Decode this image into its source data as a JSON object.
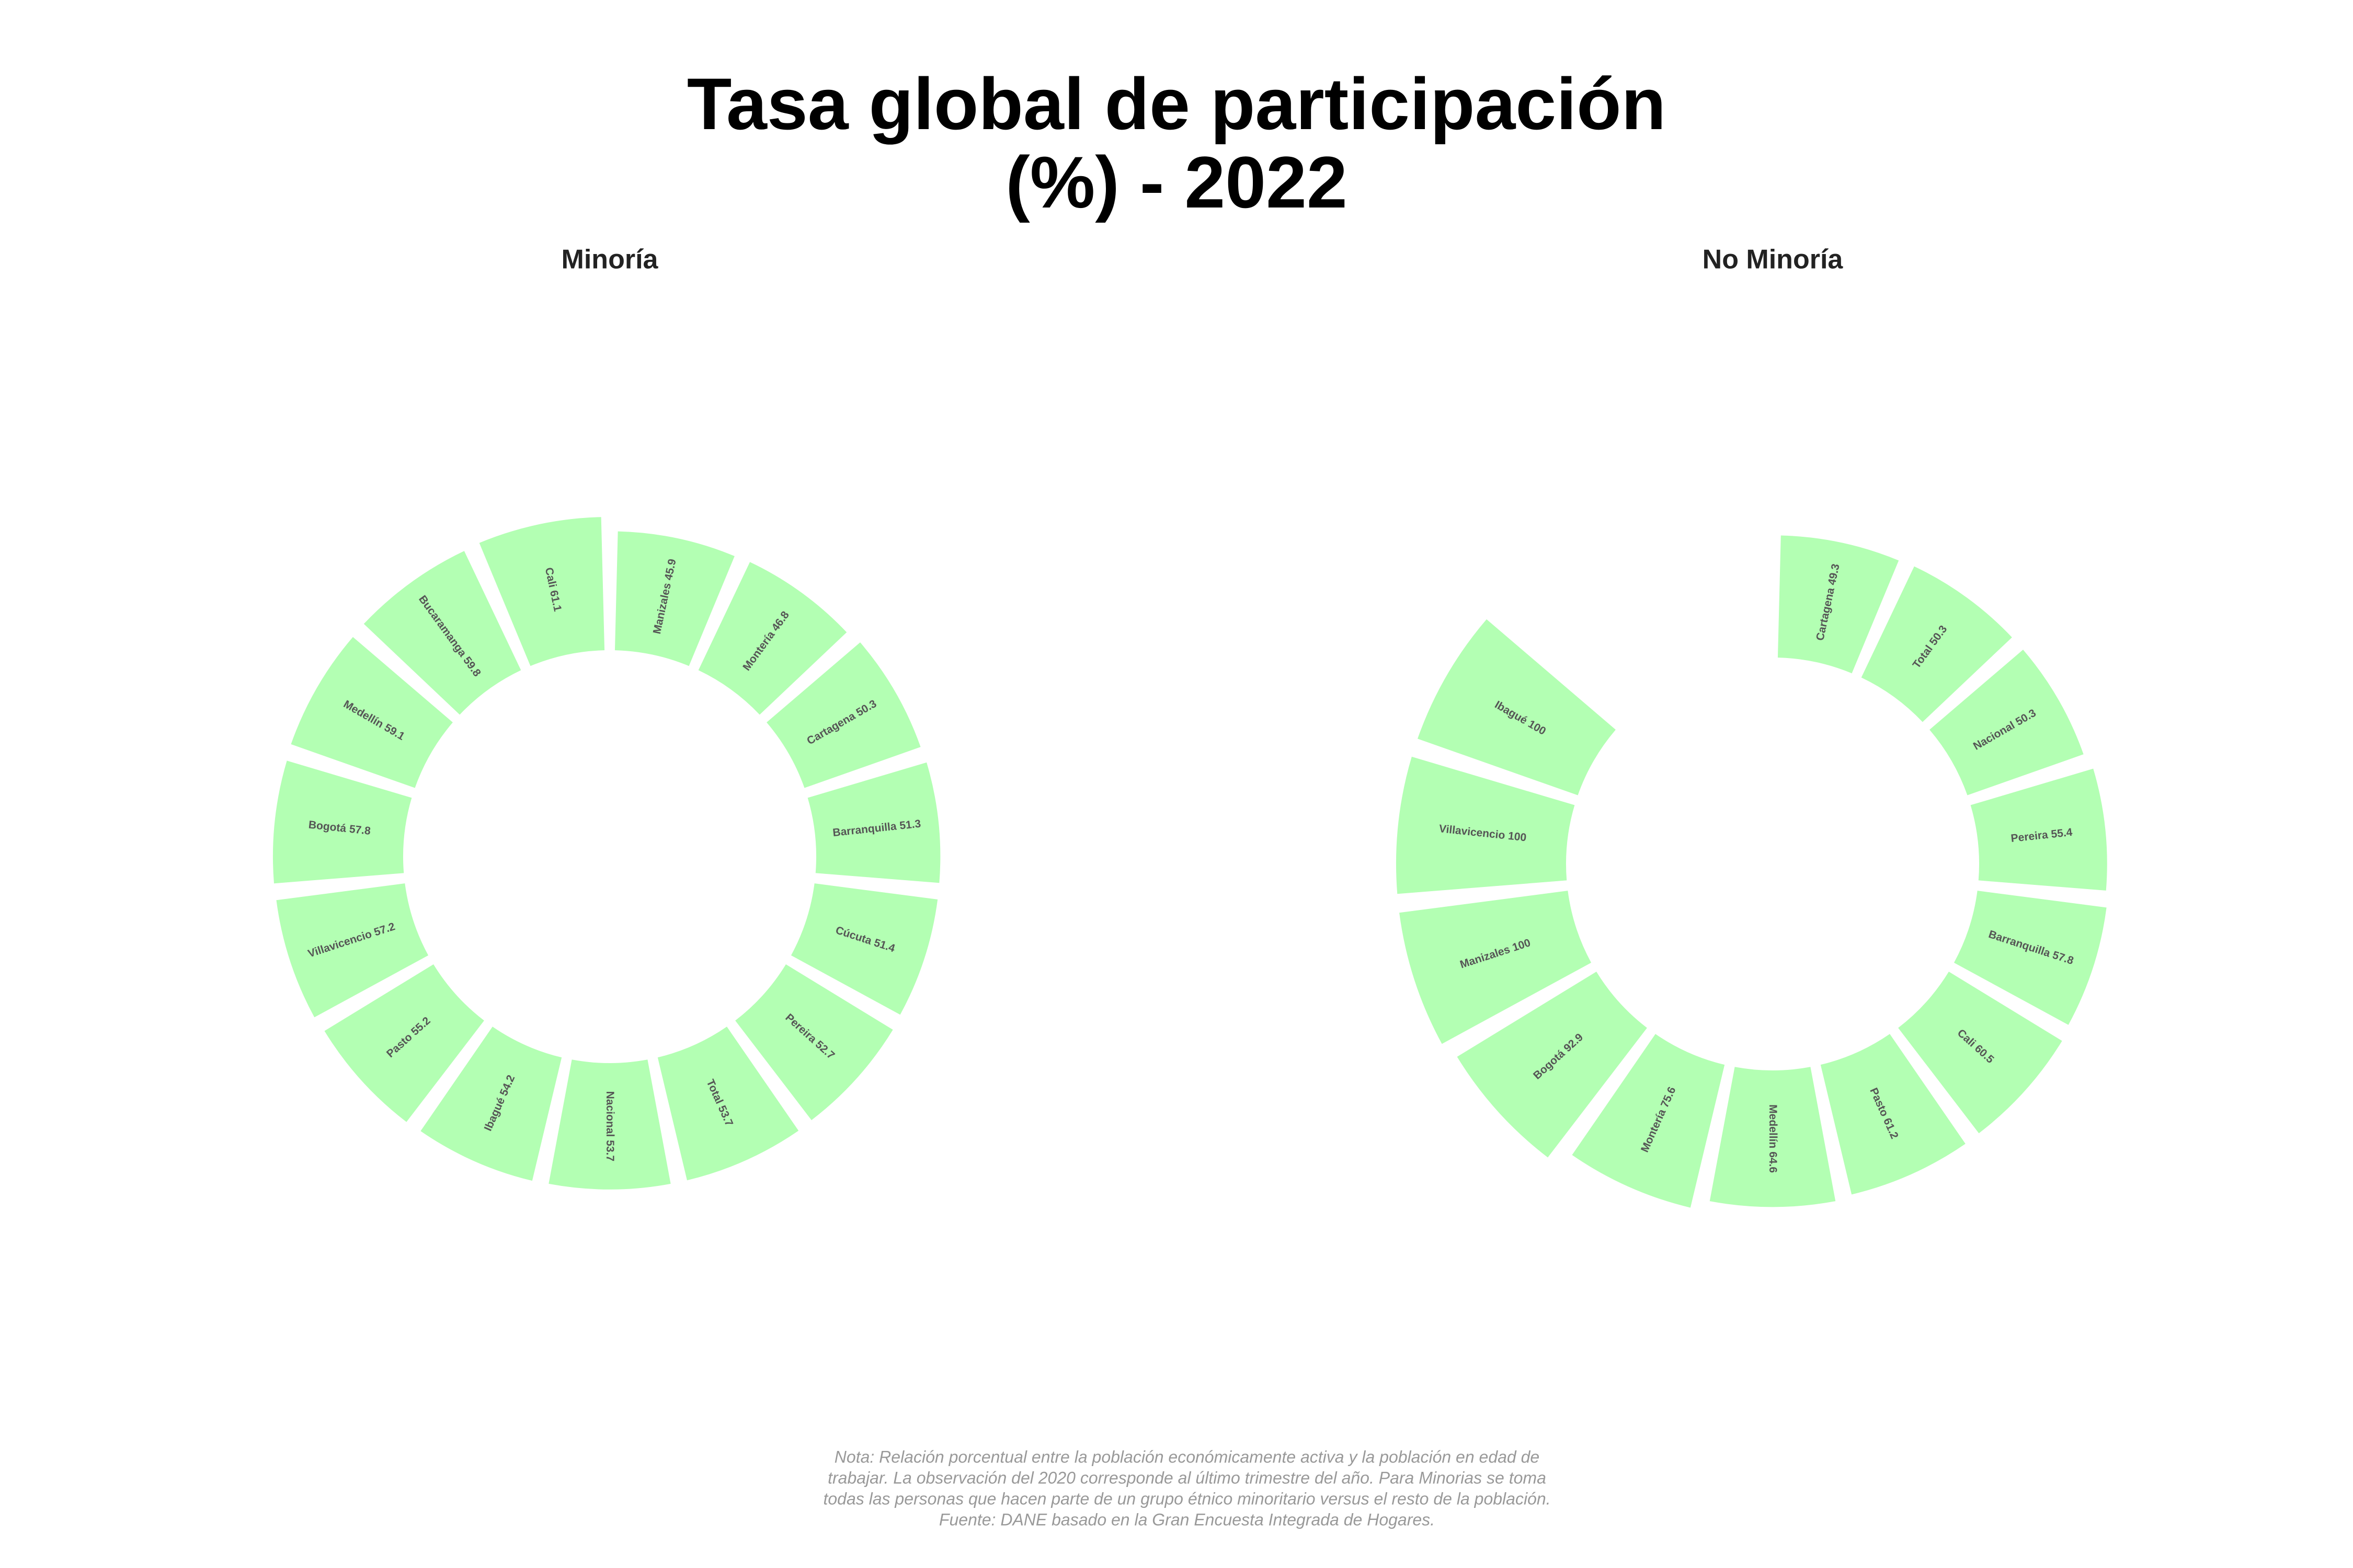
{
  "title": [
    "Tasa global de participación",
    "(%) - 2022"
  ],
  "note": [
    "Nota: Relación porcentual entre la población económicamente activa y la población en edad de",
    "trabajar. La observación del 2020 corresponde al último trimestre del año. Para Minorias se toma",
    "todas las personas que hacen parte de un grupo étnico minoritario versus el resto de la población.",
    "Fuente: DANE basado en la Gran Encuesta Integrada de Hogares."
  ],
  "chart_data": [
    {
      "type": "radial_bar",
      "subtitle": "Minoría",
      "color": "#b3ffb3",
      "ylim": [
        0,
        100
      ],
      "categories": [
        "Manizales",
        "Montería",
        "Cartagena",
        "Barranquilla",
        "Cúcuta",
        "Pereira",
        "Total",
        "Nacional",
        "Ibagué",
        "Pasto",
        "Villavicencio",
        "Bogotá",
        "Medellín",
        "Bucaramanga",
        "Cali"
      ],
      "values": [
        45.9,
        46.8,
        50.3,
        51.3,
        51.4,
        52.7,
        53.7,
        53.7,
        54.2,
        55.2,
        57.2,
        57.8,
        59.1,
        59.8,
        61.1
      ]
    },
    {
      "type": "radial_bar",
      "subtitle": "No Minoría",
      "color": "#b3ffb3",
      "ylim": [
        0,
        100
      ],
      "categories": [
        "Cartagena",
        "Total",
        "Nacional",
        "Pereira",
        "Barranquilla",
        "Cali",
        "Pasto",
        "Medellín",
        "Montería",
        "Bogotá",
        "Manizales",
        "Villavicencio",
        "Ibagué"
      ],
      "values": [
        49.3,
        50.3,
        50.3,
        55.4,
        57.8,
        60.5,
        61.2,
        64.6,
        75.6,
        92.9,
        100,
        100,
        100
      ]
    }
  ]
}
